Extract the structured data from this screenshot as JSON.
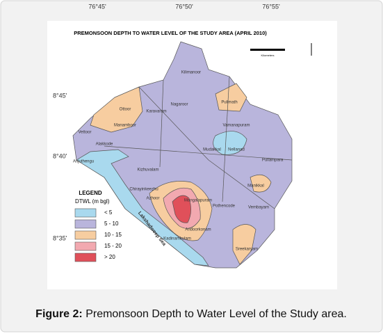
{
  "map": {
    "title": "PREMONSOON DEPTH TO WATER LEVEL OF THE STUDY AREA (APRIL 2010)",
    "longitude_labels": [
      "76°45'",
      "76°50'",
      "76°55'"
    ],
    "latitude_labels": [
      "8°45'",
      "8°40'",
      "8°35'"
    ],
    "scale_label": "Kilometers",
    "coast_label": "Lakshadweep Sea",
    "places": [
      "Kilimanoor",
      "Pulimath",
      "Nagaroor",
      "Karavaram",
      "Ottoor",
      "Manamboor",
      "Vamanapuram",
      "Vettoor",
      "Alakkode",
      "Mudakkal",
      "Nellanad",
      "Pullampara",
      "Anjuthengu",
      "Kizhuvalam",
      "Manikkal",
      "Chirayinkeezhu",
      "Azhoor",
      "Mangalapuram",
      "Pothencode",
      "Vembayam",
      "Andoorkonam",
      "Kadinamkulam",
      "Sreekaryam"
    ],
    "legend": {
      "title": "LEGEND",
      "subtitle": "DTWL (m bgl)",
      "items": [
        {
          "label": "< 5",
          "color": "#a9d9ee"
        },
        {
          "label": "5 - 10",
          "color": "#b9b5dc"
        },
        {
          "label": "10 - 15",
          "color": "#f7cda0"
        },
        {
          "label": "15 - 20",
          "color": "#f2a9b0"
        },
        {
          "label": "> 20",
          "color": "#e0505a"
        }
      ]
    }
  },
  "caption": {
    "label": "Figure 2:",
    "text": "Premonsoon Depth to Water Level of the Study area."
  }
}
